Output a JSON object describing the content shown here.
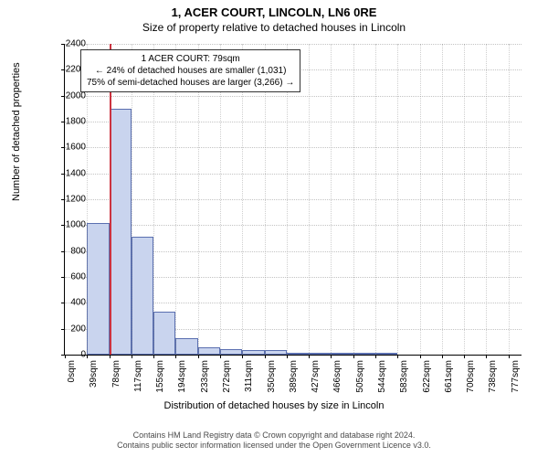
{
  "title": "1, ACER COURT, LINCOLN, LN6 0RE",
  "subtitle": "Size of property relative to detached houses in Lincoln",
  "ylabel": "Number of detached properties",
  "xlabel": "Distribution of detached houses by size in Lincoln",
  "footer_line1": "Contains HM Land Registry data © Crown copyright and database right 2024.",
  "footer_line2": "Contains public sector information licensed under the Open Government Licence v3.0.",
  "chart": {
    "type": "histogram",
    "ylim": [
      0,
      2400
    ],
    "ytick_step": 200,
    "xtick_labels": [
      "0sqm",
      "39sqm",
      "78sqm",
      "117sqm",
      "155sqm",
      "194sqm",
      "233sqm",
      "272sqm",
      "311sqm",
      "350sqm",
      "389sqm",
      "427sqm",
      "466sqm",
      "505sqm",
      "544sqm",
      "583sqm",
      "622sqm",
      "661sqm",
      "700sqm",
      "738sqm",
      "777sqm"
    ],
    "xbin_width_sqm": 38.85,
    "xrange_sqm": 800,
    "bar_color": "#c9d4ee",
    "bar_border_color": "#5a6fb0",
    "values": [
      0,
      1020,
      1900,
      910,
      330,
      130,
      60,
      40,
      35,
      35,
      15,
      10,
      5,
      5,
      3,
      0,
      0,
      0,
      0,
      0
    ],
    "marker_sqm": 79,
    "marker_color": "#cc3340",
    "background_color": "#ffffff",
    "grid_color": "#888888",
    "tick_fontsize": 10,
    "label_fontsize": 11,
    "title_fontsize": 13
  },
  "infobox": {
    "line1": "1 ACER COURT: 79sqm",
    "line2": "← 24% of detached houses are smaller (1,031)",
    "line3": "75% of semi-detached houses are larger (3,266) →"
  }
}
